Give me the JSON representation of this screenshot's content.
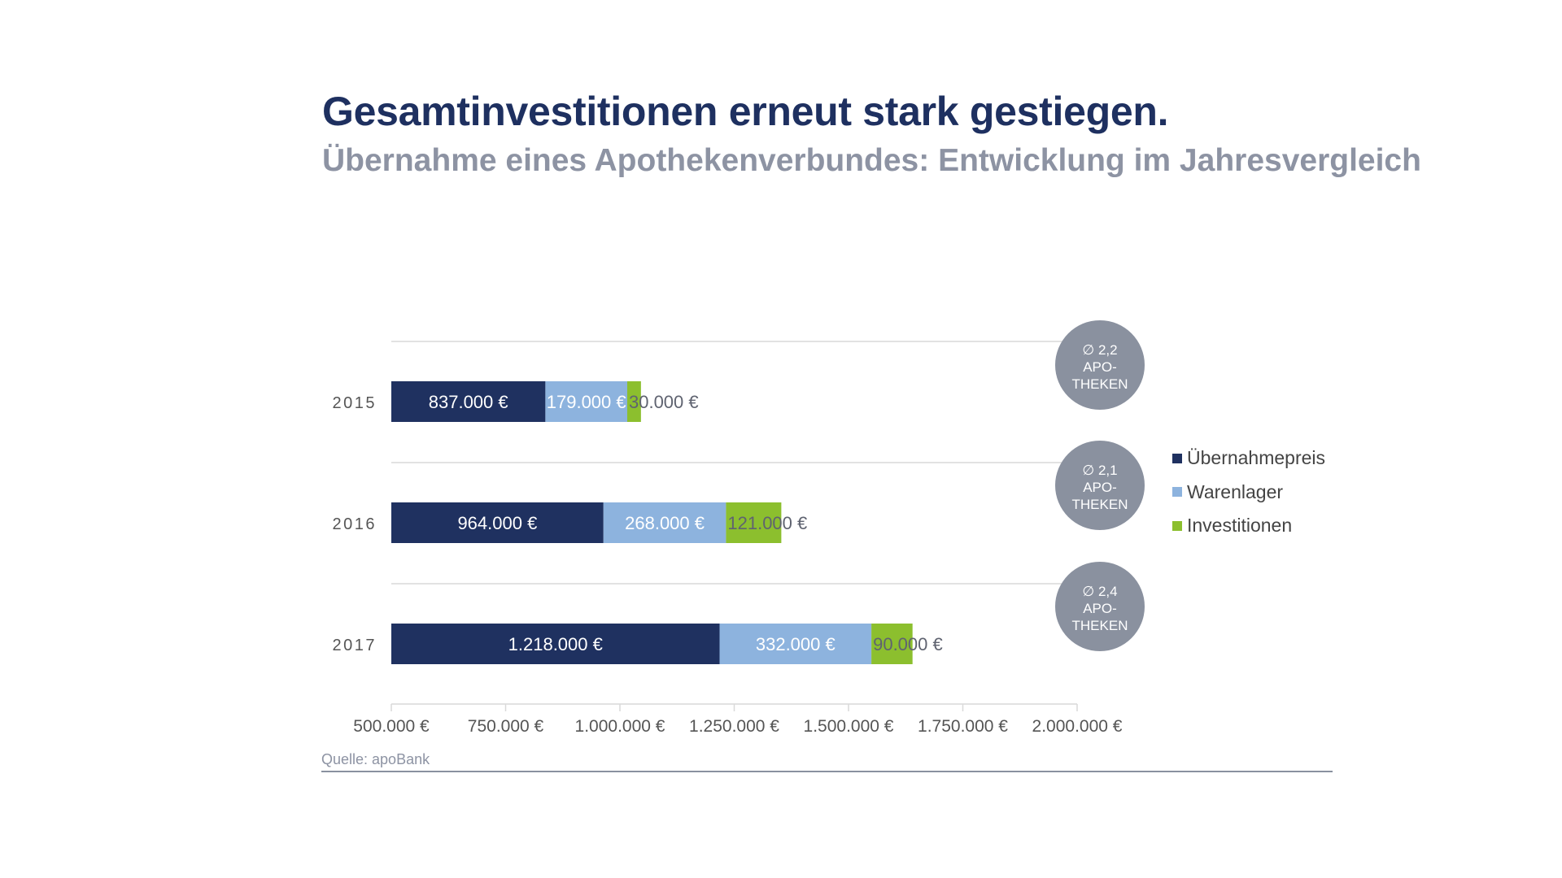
{
  "header": {
    "title": "Gesamtinvestitionen erneut stark gestiegen.",
    "subtitle": "Übernahme eines Apothekenverbundes: Entwicklung im Jahresvergleich"
  },
  "footer": {
    "source": "Quelle: apoBank"
  },
  "colors": {
    "title": "#1E3060",
    "subtitle": "#8D93A3",
    "uebernahmepreis": "#1F3160",
    "warenlager": "#8DB3DE",
    "investitionen": "#8CBF2E",
    "circle": "#8A919F",
    "axis_text": "#555555",
    "gridline": "#D9D9D9"
  },
  "chart_data": {
    "type": "bar",
    "orientation": "horizontal",
    "stacked": true,
    "title": "Gesamtinvestitionen erneut stark gestiegen.",
    "subtitle": "Übernahme eines Apothekenverbundes: Entwicklung im Jahresvergleich",
    "categories": [
      "2015",
      "2016",
      "2017"
    ],
    "series": [
      {
        "name": "Übernahmepreis",
        "color": "#1F3160",
        "values": [
          837000,
          964000,
          1218000
        ],
        "labels": [
          "837.000 €",
          "964.000 €",
          "1.218.000 €"
        ],
        "label_color": "#FFFFFF"
      },
      {
        "name": "Warenlager",
        "color": "#8DB3DE",
        "values": [
          179000,
          268000,
          332000
        ],
        "labels": [
          "179.000 €",
          "268.000 €",
          "332.000 €"
        ],
        "label_color": "#FFFFFF"
      },
      {
        "name": "Investitionen",
        "color": "#8CBF2E",
        "values": [
          30000,
          121000,
          90000
        ],
        "labels": [
          "30.000 €",
          "121.000 €",
          "90.000 €"
        ],
        "label_color": "#5F6370"
      }
    ],
    "xlim": [
      500000,
      2000000
    ],
    "x_ticks": [
      500000,
      750000,
      1000000,
      1250000,
      1500000,
      1750000,
      2000000
    ],
    "x_tick_labels": [
      "500.000 €",
      "750.000 €",
      "1.000.000 €",
      "1.250.000 €",
      "1.500.000 €",
      "1.750.000 €",
      "2.000.000 €"
    ],
    "xlabel": "",
    "ylabel": "",
    "grid": "horizontal separators between categories",
    "legend": {
      "placement": "right",
      "entries": [
        "Übernahmepreis",
        "Warenlager",
        "Investitionen"
      ]
    },
    "annotations": [
      {
        "category": "2015",
        "lines": [
          "∅ 2,2",
          "APO-",
          "THEKEN"
        ]
      },
      {
        "category": "2016",
        "lines": [
          "∅ 2,1",
          "APO-",
          "THEKEN"
        ]
      },
      {
        "category": "2017",
        "lines": [
          "∅ 2,4",
          "APO-",
          "THEKEN"
        ]
      }
    ]
  }
}
